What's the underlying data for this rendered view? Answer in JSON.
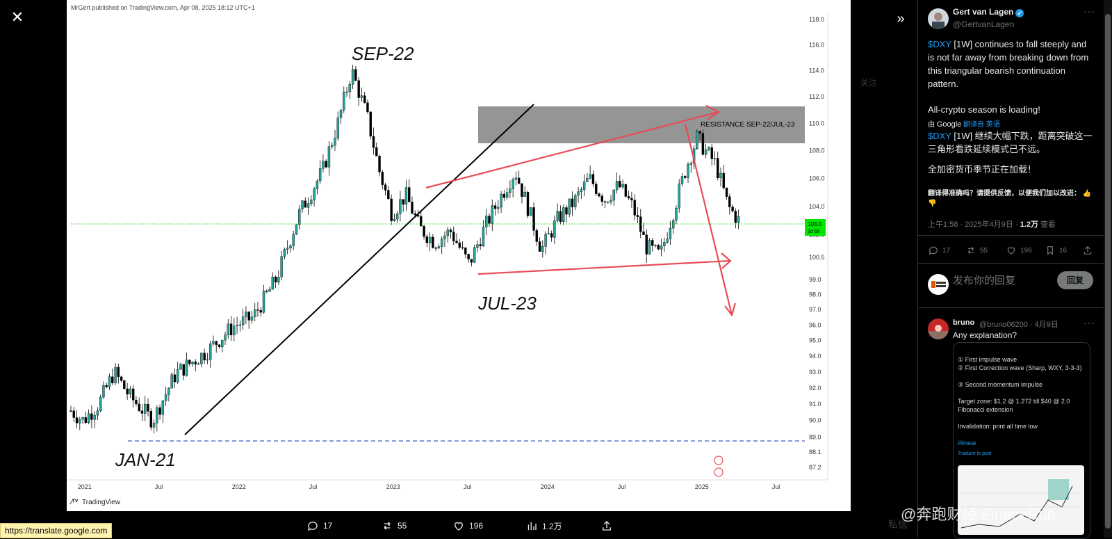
{
  "viewer": {
    "close_icon": "close-icon",
    "expand_icon": "chevrons-right-icon"
  },
  "chart": {
    "header": "MrGert published on TradingView.com, Apr 08, 2025 18:12 UTC+1",
    "brand": "TradingView",
    "annotations": {
      "sep22": "SEP-22",
      "jul23": "JUL-23",
      "jan21": "JAN-21",
      "resistance": "RESISTANCE SEP-22/JUL-23"
    },
    "current_price": "103.0",
    "current_sub": "3d 6h",
    "colors": {
      "up": "#26a69a",
      "down": "#000000",
      "wedge": "#e84b56",
      "hline": "#5b7bd5",
      "cur": "#00e600",
      "zone": "#8a8a8a"
    }
  },
  "chart_data": {
    "type": "candlestick",
    "title": "",
    "y_ticks": [
      "118.0",
      "116.0",
      "114.0",
      "112.0",
      "110.0",
      "108.0",
      "106.0",
      "104.0",
      "102.0",
      "100.5",
      "99.0",
      "98.0",
      "97.0",
      "96.0",
      "95.0",
      "94.0",
      "93.0",
      "92.0",
      "91.0",
      "90.0",
      "89.0",
      "88.1",
      "87.2"
    ],
    "x_ticks": [
      "2021",
      "Jul",
      "2022",
      "Jul",
      "2023",
      "Jul",
      "2024",
      "Jul",
      "2025",
      "Jul"
    ],
    "ylim": [
      87.2,
      118.0
    ],
    "log_scale": true,
    "series_close_path": [
      {
        "t": 2020.92,
        "v": 90.6
      },
      {
        "t": 2021.0,
        "v": 90.0
      },
      {
        "t": 2021.1,
        "v": 91.0
      },
      {
        "t": 2021.2,
        "v": 93.0
      },
      {
        "t": 2021.3,
        "v": 91.5
      },
      {
        "t": 2021.45,
        "v": 90.0
      },
      {
        "t": 2021.6,
        "v": 92.9
      },
      {
        "t": 2021.8,
        "v": 94.3
      },
      {
        "t": 2021.97,
        "v": 95.9
      },
      {
        "t": 2022.1,
        "v": 96.5
      },
      {
        "t": 2022.25,
        "v": 99.0
      },
      {
        "t": 2022.4,
        "v": 103.5
      },
      {
        "t": 2022.55,
        "v": 106.5
      },
      {
        "t": 2022.65,
        "v": 110.0
      },
      {
        "t": 2022.74,
        "v": 114.0
      },
      {
        "t": 2022.84,
        "v": 110.5
      },
      {
        "t": 2022.92,
        "v": 106.5
      },
      {
        "t": 2023.0,
        "v": 103.5
      },
      {
        "t": 2023.09,
        "v": 104.8
      },
      {
        "t": 2023.18,
        "v": 102.5
      },
      {
        "t": 2023.28,
        "v": 101.5
      },
      {
        "t": 2023.38,
        "v": 102.3
      },
      {
        "t": 2023.5,
        "v": 100.0
      },
      {
        "t": 2023.6,
        "v": 102.5
      },
      {
        "t": 2023.72,
        "v": 105.0
      },
      {
        "t": 2023.8,
        "v": 106.5
      },
      {
        "t": 2023.88,
        "v": 104.0
      },
      {
        "t": 2023.97,
        "v": 101.0
      },
      {
        "t": 2024.08,
        "v": 103.2
      },
      {
        "t": 2024.18,
        "v": 104.3
      },
      {
        "t": 2024.28,
        "v": 106.0
      },
      {
        "t": 2024.38,
        "v": 104.5
      },
      {
        "t": 2024.47,
        "v": 105.5
      },
      {
        "t": 2024.56,
        "v": 104.0
      },
      {
        "t": 2024.65,
        "v": 101.2
      },
      {
        "t": 2024.74,
        "v": 100.6
      },
      {
        "t": 2024.82,
        "v": 103.5
      },
      {
        "t": 2024.9,
        "v": 106.5
      },
      {
        "t": 2024.98,
        "v": 109.0
      },
      {
        "t": 2025.02,
        "v": 108.2
      },
      {
        "t": 2025.1,
        "v": 107.0
      },
      {
        "t": 2025.18,
        "v": 104.0
      },
      {
        "t": 2025.25,
        "v": 103.0
      }
    ]
  },
  "media_bar": {
    "replies": "17",
    "reposts": "55",
    "likes": "196",
    "views": "1.2万"
  },
  "tooltip_url": "https://translate.google.com",
  "background_ghosts": {
    "follow": "关注",
    "dm": "私信"
  },
  "tweet": {
    "author": "Gert van Lagen",
    "handle": "@GertvanLagen",
    "text_cashtag": "$DXY",
    "text_1": " [1W] continues to fall steeply and is not far away from breaking down from this triangular bearish continuation pattern.",
    "text_2": "All-crypto season is loading!",
    "translate_by": "由",
    "google": "Google",
    "translated_from": "翻译自 英语",
    "zh_cashtag": "$DXY",
    "zh_1": " [1W] 继续大幅下跌，距离突破这一三角形看跌延续模式已不远。",
    "zh_2": "全加密货币季节正在加载！",
    "feedback": "翻译得准确吗？请提供反馈，以便我们加以改进：",
    "time": "上午1:58 · 2025年4月9日 · ",
    "views_count": "1.2万",
    "views_label": " 查看",
    "stats": {
      "replies": "17",
      "reposts": "55",
      "likes": "196",
      "bookmarks": "16"
    }
  },
  "reply_box": {
    "placeholder": "发布你的回复",
    "button": "回复"
  },
  "reply": {
    "name": "bruno",
    "handle": "@bruno06200 · 4月9日",
    "text": "Any explanation?",
    "embed_lines": [
      "① First impulse wave",
      "② First Correction wave (Sharp, WXY, 3-3-3)",
      "③ Second momentum impulse",
      "Target zone: $1.2 @ 1.272 till $40 @ 2.0 Fibonacci extension",
      "Invalidation: print all time low"
    ],
    "embed_tag": "#linear",
    "embed_translate": "Traduire le post"
  },
  "watermark": "@奔跑财经 FinaceRun"
}
